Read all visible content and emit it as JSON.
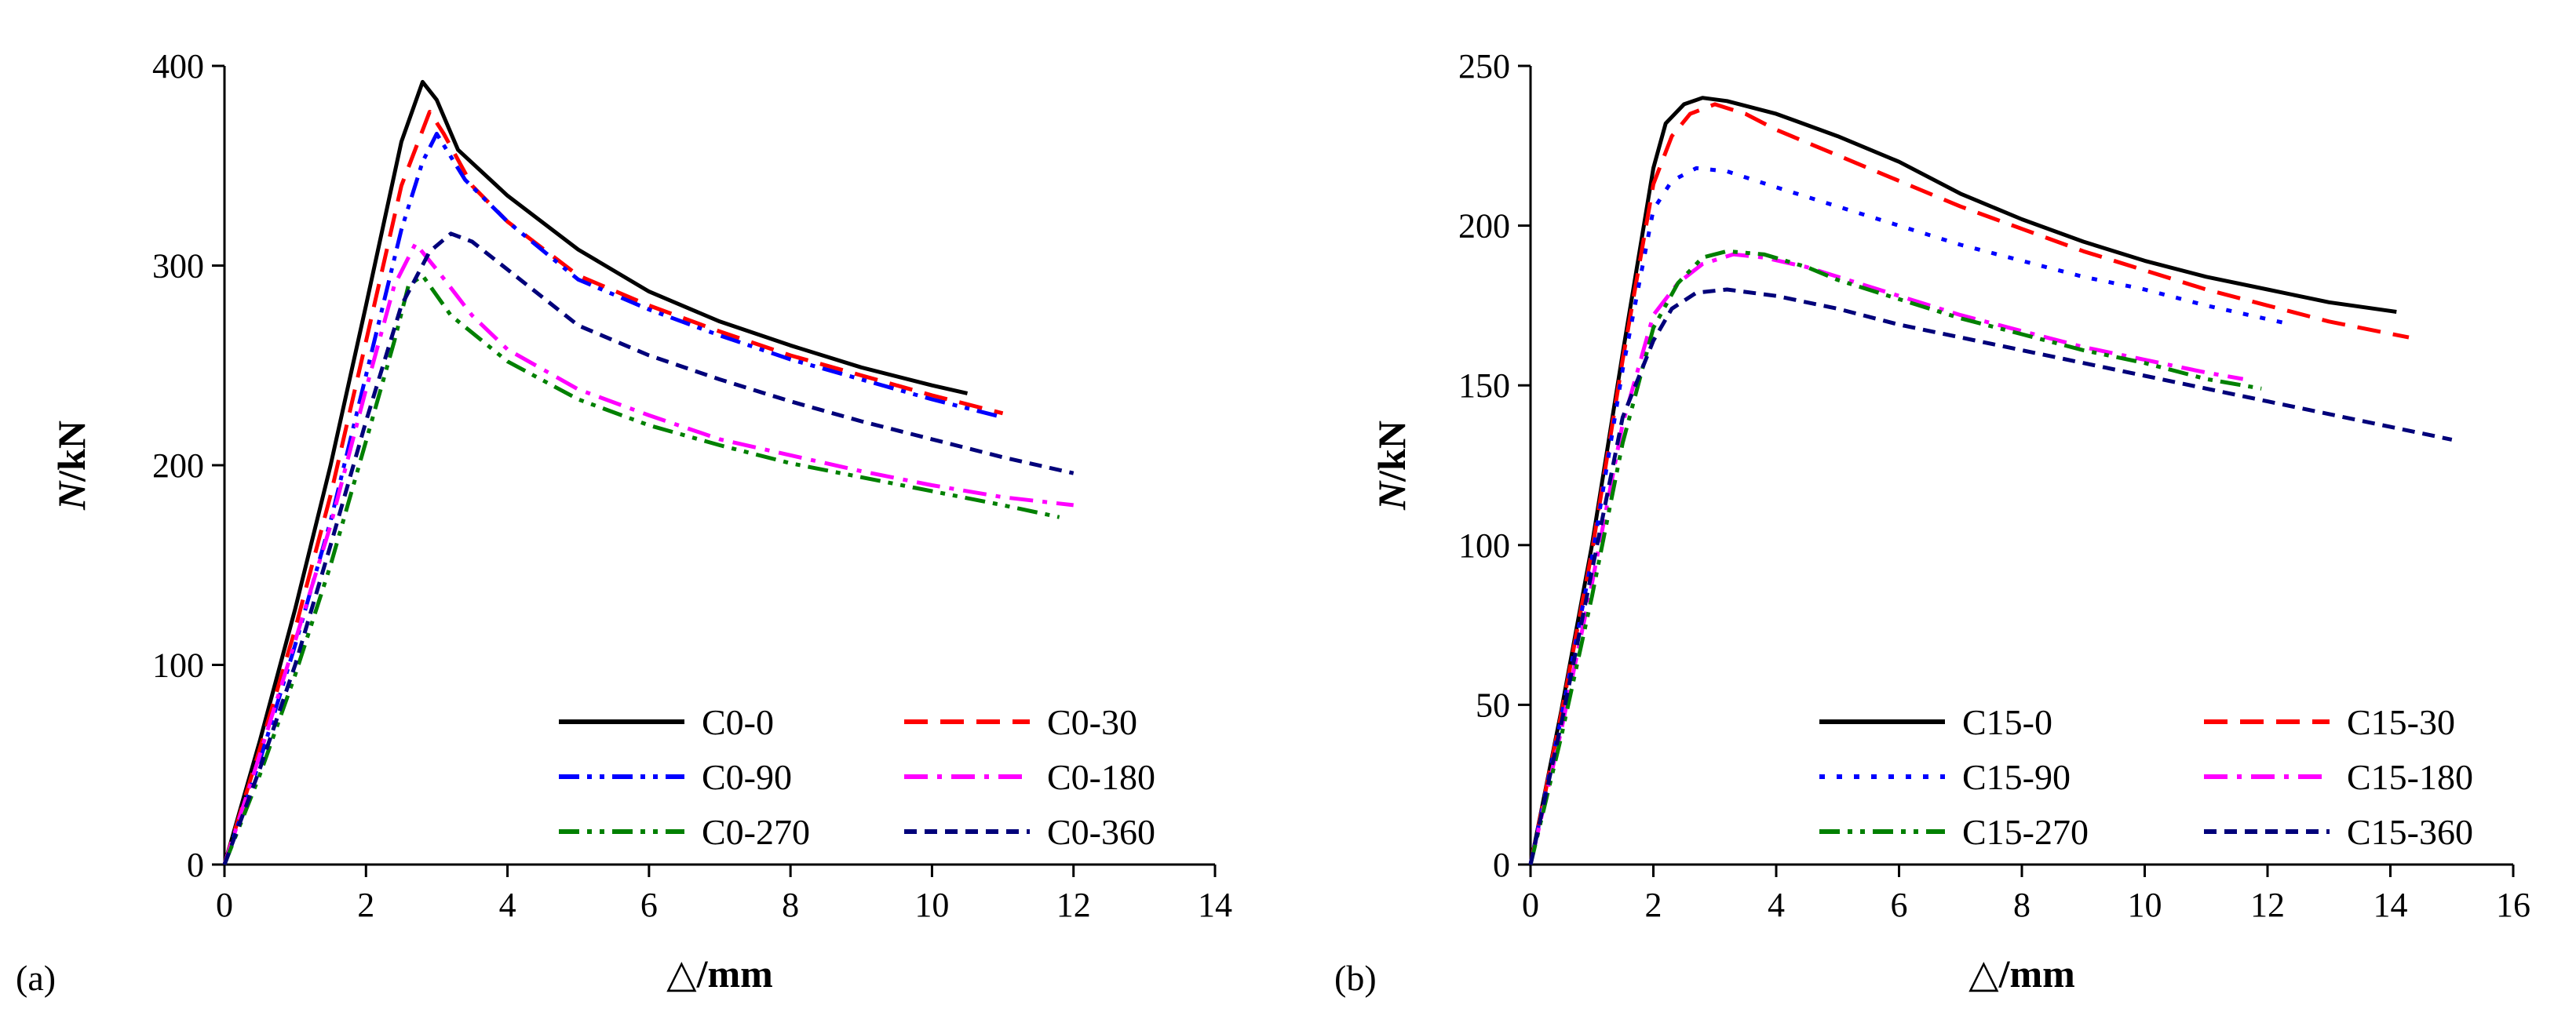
{
  "chart_data": [
    {
      "panel_label": "(a)",
      "type": "line",
      "xlabel": "/mm",
      "xlabel_symbol": "△",
      "ylabel_symbol": "N",
      "ylabel": "/kN",
      "xlim": [
        0,
        14
      ],
      "ylim": [
        0,
        400
      ],
      "xticks": [
        0,
        2,
        4,
        6,
        8,
        10,
        12,
        14
      ],
      "yticks": [
        0,
        100,
        200,
        300,
        400
      ],
      "legend_position": "lower-right",
      "series": [
        {
          "name": "C0-0",
          "color": "#000000",
          "dash": "solid",
          "x": [
            0,
            0.5,
            1,
            1.5,
            2,
            2.5,
            2.8,
            3,
            3.3,
            4,
            5,
            6,
            7,
            8,
            9,
            10,
            10.5
          ],
          "y": [
            0,
            62,
            128,
            200,
            280,
            362,
            392,
            383,
            358,
            335,
            308,
            287,
            272,
            260,
            249,
            240,
            236
          ]
        },
        {
          "name": "C0-30",
          "color": "#ff0000",
          "dash": "dash",
          "x": [
            0,
            0.5,
            1,
            1.5,
            2,
            2.5,
            2.9,
            3.1,
            3.5,
            4,
            5,
            6,
            7,
            8,
            9,
            10,
            11
          ],
          "y": [
            0,
            58,
            118,
            185,
            262,
            340,
            377,
            366,
            340,
            322,
            295,
            280,
            267,
            255,
            245,
            235,
            226
          ]
        },
        {
          "name": "C0-90",
          "color": "#0000ff",
          "dash": "dashdotdot",
          "x": [
            0,
            0.5,
            1,
            1.5,
            2,
            2.5,
            2.8,
            3.0,
            3.4,
            4,
            5,
            6,
            7,
            8,
            9,
            10,
            11
          ],
          "y": [
            0,
            52,
            110,
            172,
            245,
            318,
            352,
            366,
            343,
            322,
            293,
            278,
            265,
            253,
            243,
            233,
            224
          ]
        },
        {
          "name": "C0-180",
          "color": "#ff00ff",
          "dash": "dashdot",
          "x": [
            0,
            0.5,
            1,
            1.5,
            2,
            2.4,
            2.7,
            3.0,
            3.5,
            4,
            5,
            6,
            7,
            8,
            9,
            10,
            11,
            12
          ],
          "y": [
            0,
            55,
            112,
            170,
            238,
            290,
            311,
            298,
            275,
            258,
            238,
            225,
            213,
            205,
            197,
            190,
            184,
            180
          ]
        },
        {
          "name": "C0-270",
          "color": "#008000",
          "dash": "dashdotdot",
          "x": [
            0,
            0.5,
            1,
            1.5,
            2,
            2.4,
            2.6,
            2.8,
            3.2,
            4,
            5,
            6,
            7,
            8,
            9,
            10,
            11,
            11.8
          ],
          "y": [
            0,
            45,
            95,
            150,
            212,
            262,
            290,
            295,
            275,
            252,
            233,
            220,
            210,
            201,
            194,
            187,
            180,
            174
          ]
        },
        {
          "name": "C0-360",
          "color": "#00007a",
          "dash": "shortdash",
          "x": [
            0,
            0.5,
            1,
            1.5,
            2,
            2.5,
            2.9,
            3.2,
            3.5,
            4,
            5,
            6,
            7,
            8,
            9,
            10,
            11,
            12
          ],
          "y": [
            0,
            48,
            100,
            160,
            222,
            280,
            307,
            316,
            312,
            298,
            270,
            255,
            243,
            232,
            222,
            213,
            204,
            196
          ]
        }
      ]
    },
    {
      "panel_label": "(b)",
      "type": "line",
      "xlabel": "/mm",
      "xlabel_symbol": "△",
      "ylabel_symbol": "N",
      "ylabel": "/kN",
      "xlim": [
        0,
        16
      ],
      "ylim": [
        0,
        250
      ],
      "xticks": [
        0,
        2,
        4,
        6,
        8,
        10,
        12,
        14,
        16
      ],
      "yticks": [
        0,
        50,
        100,
        150,
        200,
        250
      ],
      "legend_position": "lower-right",
      "series": [
        {
          "name": "C15-0",
          "color": "#000000",
          "dash": "solid",
          "x": [
            0,
            0.5,
            1,
            1.5,
            2,
            2.2,
            2.5,
            2.8,
            3.2,
            4,
            5,
            6,
            7,
            8,
            9,
            10,
            11,
            12,
            13,
            14.1
          ],
          "y": [
            0,
            48,
            100,
            160,
            218,
            232,
            238,
            240,
            239,
            235,
            228,
            220,
            210,
            202,
            195,
            189,
            184,
            180,
            176,
            173
          ]
        },
        {
          "name": "C15-30",
          "color": "#ff0000",
          "dash": "dash",
          "x": [
            0,
            0.5,
            1,
            1.5,
            2,
            2.3,
            2.6,
            3.0,
            3.5,
            4,
            5,
            6,
            7,
            8,
            9,
            10,
            11,
            12,
            13,
            14.3
          ],
          "y": [
            0,
            47,
            98,
            158,
            213,
            228,
            235,
            238,
            235,
            230,
            222,
            214,
            206,
            199,
            192,
            186,
            180,
            175,
            170,
            165
          ]
        },
        {
          "name": "C15-90",
          "color": "#0000ff",
          "dash": "dot",
          "x": [
            0,
            0.5,
            1,
            1.5,
            2,
            2.3,
            2.7,
            3.2,
            4,
            5,
            6,
            7,
            8,
            9,
            10,
            11,
            12.4
          ],
          "y": [
            0,
            46,
            96,
            155,
            205,
            214,
            218,
            217,
            212,
            206,
            200,
            194,
            189,
            184,
            180,
            175,
            169
          ]
        },
        {
          "name": "C15-180",
          "color": "#ff00ff",
          "dash": "dashdot",
          "x": [
            0,
            0.5,
            1,
            1.5,
            2,
            2.4,
            2.8,
            3.3,
            3.8,
            4.5,
            5,
            6,
            7,
            8,
            9,
            10,
            11,
            11.6
          ],
          "y": [
            0,
            42,
            88,
            138,
            172,
            182,
            188,
            191,
            190,
            187,
            184,
            178,
            172,
            167,
            162,
            158,
            154,
            152
          ]
        },
        {
          "name": "C15-270",
          "color": "#008000",
          "dash": "dashdotdot",
          "x": [
            0,
            0.5,
            1,
            1.5,
            2,
            2.4,
            2.8,
            3.2,
            3.8,
            4.5,
            5,
            6,
            7,
            8,
            9,
            10,
            11,
            11.9
          ],
          "y": [
            0,
            40,
            84,
            132,
            168,
            182,
            190,
            192,
            191,
            187,
            183,
            177,
            171,
            166,
            161,
            157,
            152,
            149
          ]
        },
        {
          "name": "C15-360",
          "color": "#00007a",
          "dash": "shortdash",
          "x": [
            0,
            0.5,
            1,
            1.5,
            2,
            2.3,
            2.7,
            3.2,
            4,
            5,
            6,
            7,
            8,
            9,
            10,
            11,
            12,
            13,
            14,
            15
          ],
          "y": [
            0,
            44,
            92,
            140,
            164,
            174,
            179,
            180,
            178,
            174,
            169,
            165,
            161,
            157,
            153,
            149,
            145,
            141,
            137,
            133
          ]
        }
      ]
    }
  ]
}
